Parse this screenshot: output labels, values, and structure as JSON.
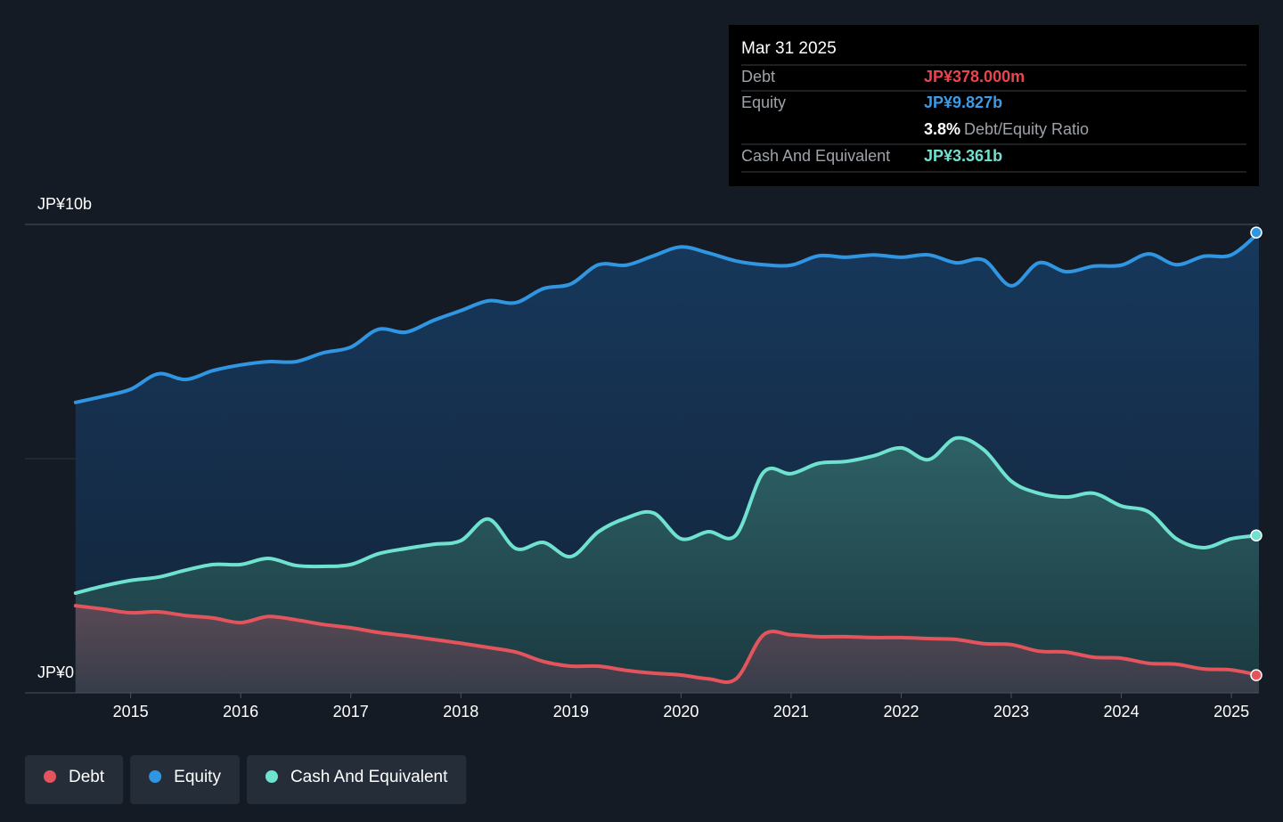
{
  "chart_data": {
    "type": "line",
    "x": [
      2014.5,
      2014.75,
      2015,
      2015.25,
      2015.5,
      2015.75,
      2016,
      2016.25,
      2016.5,
      2016.75,
      2017,
      2017.25,
      2017.5,
      2017.75,
      2018,
      2018.25,
      2018.5,
      2018.75,
      2019,
      2019.25,
      2019.5,
      2019.75,
      2020,
      2020.25,
      2020.5,
      2020.75,
      2021,
      2021.25,
      2021.5,
      2021.75,
      2022,
      2022.25,
      2022.5,
      2022.75,
      2023,
      2023.25,
      2023.5,
      2023.75,
      2024,
      2024.25,
      2024.5,
      2024.75,
      2025,
      2025.25
    ],
    "series": [
      {
        "name": "Debt",
        "color": "#e4545c",
        "values": [
          1.86,
          1.79,
          1.71,
          1.73,
          1.65,
          1.6,
          1.5,
          1.63,
          1.56,
          1.46,
          1.39,
          1.29,
          1.22,
          1.14,
          1.06,
          0.97,
          0.87,
          0.67,
          0.57,
          0.57,
          0.48,
          0.42,
          0.38,
          0.3,
          0.3,
          1.24,
          1.24,
          1.2,
          1.2,
          1.18,
          1.18,
          1.16,
          1.14,
          1.05,
          1.03,
          0.89,
          0.87,
          0.76,
          0.74,
          0.63,
          0.61,
          0.51,
          0.49,
          0.378
        ]
      },
      {
        "name": "Equity",
        "color": "#3196e2",
        "values": [
          6.2,
          6.33,
          6.48,
          6.81,
          6.69,
          6.88,
          7.0,
          7.07,
          7.07,
          7.26,
          7.38,
          7.76,
          7.7,
          7.95,
          8.16,
          8.37,
          8.33,
          8.63,
          8.73,
          9.14,
          9.13,
          9.33,
          9.52,
          9.39,
          9.22,
          9.14,
          9.13,
          9.33,
          9.3,
          9.35,
          9.3,
          9.35,
          9.18,
          9.24,
          8.69,
          9.18,
          8.99,
          9.11,
          9.13,
          9.37,
          9.14,
          9.32,
          9.35,
          9.827
        ]
      },
      {
        "name": "Cash And Equivalent",
        "color": "#6fe2cf",
        "values": [
          2.13,
          2.28,
          2.4,
          2.47,
          2.62,
          2.74,
          2.74,
          2.87,
          2.72,
          2.7,
          2.74,
          2.97,
          3.08,
          3.17,
          3.25,
          3.71,
          3.08,
          3.21,
          2.91,
          3.44,
          3.73,
          3.84,
          3.29,
          3.44,
          3.37,
          4.71,
          4.68,
          4.9,
          4.94,
          5.06,
          5.23,
          4.98,
          5.44,
          5.19,
          4.52,
          4.26,
          4.18,
          4.26,
          3.99,
          3.86,
          3.29,
          3.1,
          3.29,
          3.361
        ]
      }
    ],
    "xlim": [
      2014.04,
      2025.25
    ],
    "xticks": [
      2015,
      2016,
      2017,
      2018,
      2019,
      2020,
      2021,
      2022,
      2023,
      2024,
      2025
    ],
    "ylim": [
      0,
      10
    ],
    "yticks": [
      {
        "value": 0,
        "label": "JP¥0"
      },
      {
        "value": 10,
        "label": "JP¥10b"
      }
    ],
    "ygrid": [
      0,
      5,
      10
    ],
    "legend": "bottom-left",
    "tooltip": {
      "title": "Mar 31 2025",
      "rows": [
        {
          "label": "Debt",
          "value": "JP¥378.000m"
        },
        {
          "label": "Equity",
          "value": "JP¥9.827b"
        },
        {
          "value": "3.8%",
          "note": "Debt/Equity Ratio"
        },
        {
          "label": "Cash And Equivalent",
          "value": "JP¥3.361b"
        }
      ]
    }
  }
}
